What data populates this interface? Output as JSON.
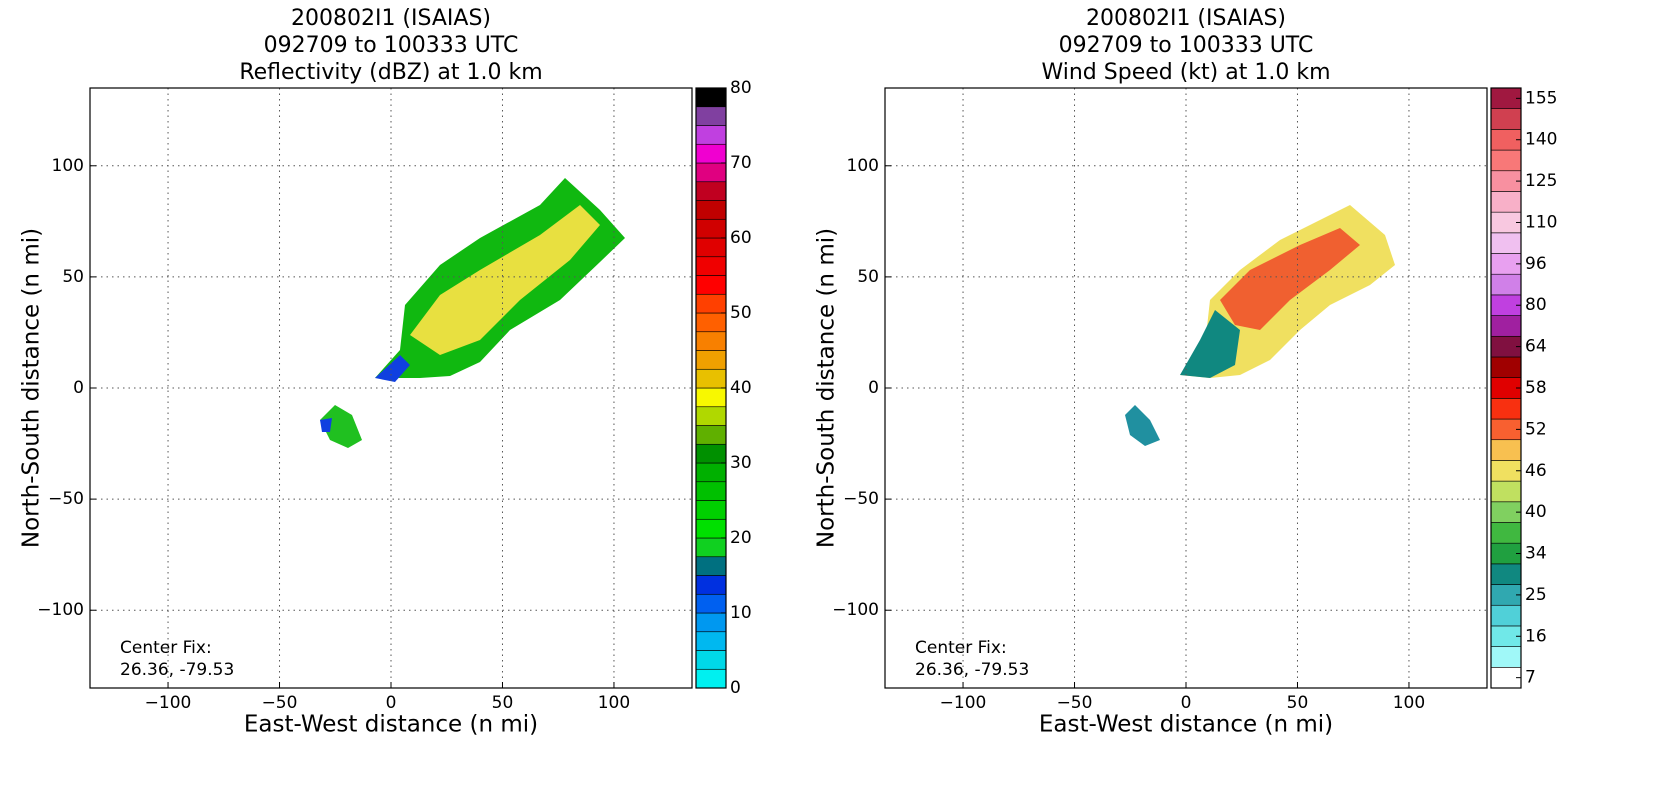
{
  "chart_data": [
    {
      "type": "radar",
      "title": [
        "200802I1 (ISAIAS)",
        "092709 to 100333 UTC",
        "Reflectivity (dBZ) at 1.0 km"
      ],
      "xlabel": "East-West distance (n mi)",
      "ylabel": "North-South distance (n mi)",
      "xlim": [
        -135,
        135
      ],
      "ylim": [
        -135,
        135
      ],
      "xticks": [
        {
          "value": -100,
          "label": "−100"
        },
        {
          "value": -50,
          "label": "−50"
        },
        0,
        50,
        100
      ],
      "yticks": [
        {
          "value": -100,
          "label": "−100"
        },
        {
          "value": -50,
          "label": "−50"
        },
        0,
        50,
        100
      ],
      "grid": true,
      "annotation": [
        "Center Fix:",
        "26.36, -79.53"
      ],
      "colorbar": {
        "lim": [
          0,
          80
        ],
        "ticks": [
          0,
          10,
          20,
          30,
          40,
          50,
          60,
          70,
          80
        ],
        "colors": [
          "#00f0f0",
          "#00d8e8",
          "#00b8f0",
          "#0098f0",
          "#0060f0",
          "#0030e0",
          "#007080",
          "#10d020",
          "#00e000",
          "#00d000",
          "#00c000",
          "#00b000",
          "#009000",
          "#60b000",
          "#b0d800",
          "#f8f800",
          "#e8c000",
          "#f0a000",
          "#f88000",
          "#ff6000",
          "#ff4000",
          "#ff0000",
          "#f00000",
          "#e00000",
          "#d00000",
          "#c00000",
          "#c00020",
          "#e00080",
          "#f000d0",
          "#c040e0",
          "#8040a0",
          "#000000"
        ]
      }
    },
    {
      "type": "radar",
      "title": [
        "200802I1 (ISAIAS)",
        "092709 to 100333 UTC",
        "Wind Speed (kt) at 1.0 km"
      ],
      "xlabel": "East-West distance (n mi)",
      "ylabel": "North-South distance (n mi)",
      "xlim": [
        -135,
        135
      ],
      "ylim": [
        -135,
        135
      ],
      "xticks": [
        {
          "value": -100,
          "label": "−100"
        },
        {
          "value": -50,
          "label": "−50"
        },
        0,
        50,
        100
      ],
      "yticks": [
        {
          "value": -100,
          "label": "−100"
        },
        {
          "value": -50,
          "label": "−50"
        },
        0,
        50,
        100
      ],
      "grid": true,
      "annotation": [
        "Center Fix:",
        "26.36, -79.53"
      ],
      "colorbar": {
        "ticks": [
          7,
          16,
          25,
          34,
          40,
          46,
          52,
          58,
          64,
          80,
          96,
          110,
          125,
          140,
          155
        ],
        "colors": [
          "#ffffff",
          "#a0f8f8",
          "#70e8e8",
          "#50d0d8",
          "#30a8b0",
          "#108880",
          "#20a040",
          "#40b840",
          "#80d060",
          "#c0e060",
          "#f0e060",
          "#f8c050",
          "#f86030",
          "#f83010",
          "#e00000",
          "#a00000",
          "#801040",
          "#a020a0",
          "#c040e0",
          "#d080e8",
          "#e8a0f0",
          "#f0c0f0",
          "#f8c8e0",
          "#f8b0c8",
          "#f890a0",
          "#f87878",
          "#f06060",
          "#d04050",
          "#a01840"
        ]
      }
    }
  ]
}
